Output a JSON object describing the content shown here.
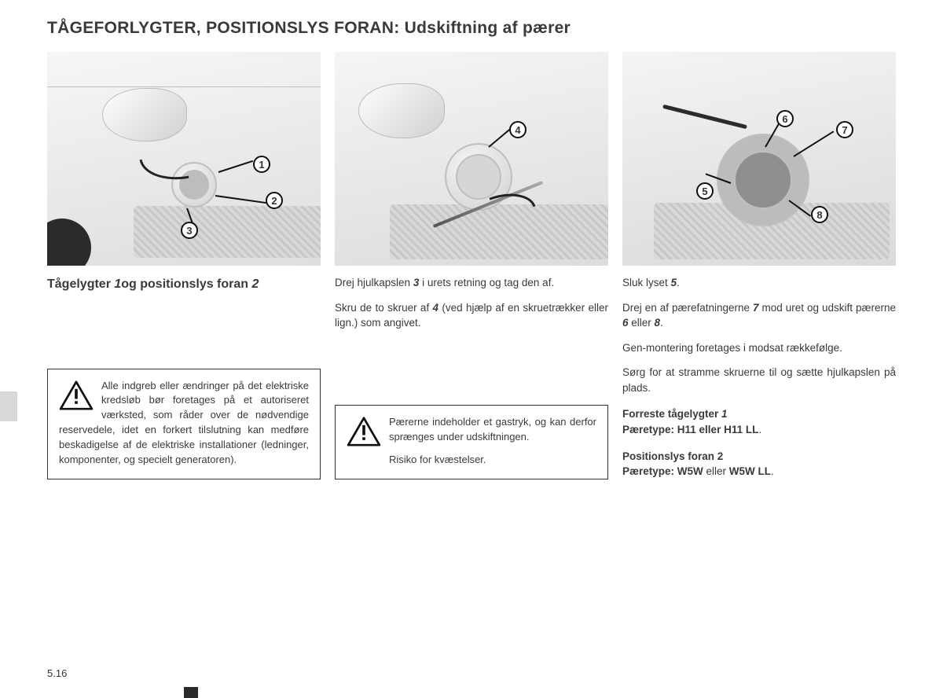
{
  "page": {
    "title_main": "TÅGEFORLYGTER, POSITIONSLYS FORAN:",
    "title_sub": "Udskiftning af pærer",
    "number": "5.16"
  },
  "figures": {
    "f1": {
      "img_id": "32997",
      "callouts": [
        "1",
        "2",
        "3"
      ]
    },
    "f2": {
      "img_id": "33027",
      "callouts": [
        "4"
      ]
    },
    "f3": {
      "img_id": "33028",
      "callouts": [
        "5",
        "6",
        "7",
        "8"
      ]
    }
  },
  "col1": {
    "subheading_html": "Tågelygter <em>1</em>og positionslys foran <em>2</em>",
    "warning_html": "Alle indgreb eller ændringer på det elektriske kredsløb bør foretages på et autoriseret værksted, som råder over de nødvendige reservedele, idet en forkert tilslutning kan medføre beskadigelse af de elektriske installationer (ledninger, komponenter, og specielt generatoren)."
  },
  "col2": {
    "p1_html": "Drej hjulkapslen <em>3</em> i urets retning og tag den af.",
    "p2_html": "Skru de to skruer af <em>4</em> (ved hjælp af en skruetrækker eller lign.) som angivet.",
    "warning_html": "Pærerne indeholder et gastryk, og kan derfor sprænges under udskiftningen.",
    "warning_risk": "Risiko for kvæstelser."
  },
  "col3": {
    "p1_html": "Sluk lyset <em>5</em>.",
    "p2_html": "Drej en af pærefatningerne <em>7</em> mod uret og udskift pærerne <em>6</em> eller <em>8</em>.",
    "p3_html": "Gen-montering foretages i modsat rækkefølge.",
    "p4_html": "Sørg for at stramme skruerne til og sætte hjulkapslen på plads.",
    "spec1_html": "<b>Forreste tågelygter <em>1</em><br>Pæretype: H11 eller H11 LL</b>.",
    "spec2_html": "<b>Positionslys foran 2<br>Pæretype: W5W</b> eller <b>W5W LL</b>."
  },
  "colors": {
    "text": "#3a3a3a",
    "border": "#333333",
    "figure_bg": "#e8e8e8"
  }
}
